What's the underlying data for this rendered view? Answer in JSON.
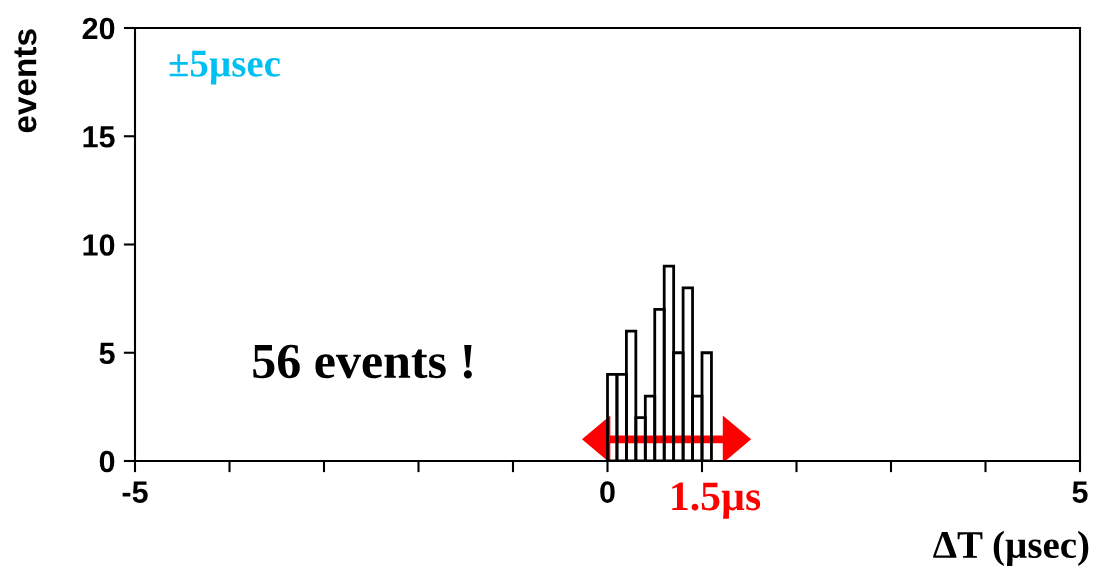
{
  "chart_data": {
    "type": "histogram",
    "xlabel": "ΔT (µsec)",
    "ylabel": "events",
    "bins": [
      0,
      0.1,
      0.2,
      0.3,
      0.4,
      0.5,
      0.6,
      0.7,
      0.8,
      0.9,
      1.0,
      1.1
    ],
    "values": [
      4,
      4,
      6,
      2,
      3,
      7,
      9,
      5,
      8,
      3,
      5
    ],
    "color": "#000000",
    "xlim": [
      -5,
      5
    ],
    "ylim": [
      0,
      20
    ],
    "xticks": [
      -5,
      {
        "value": -4,
        "label": null
      },
      {
        "value": -3,
        "label": null
      },
      {
        "value": -2,
        "label": null
      },
      {
        "value": -1,
        "label": null
      },
      0,
      {
        "value": 1,
        "label": null
      },
      {
        "value": 2,
        "label": null
      },
      {
        "value": 3,
        "label": null
      },
      {
        "value": 4,
        "label": null
      },
      5
    ],
    "yticks": [
      0,
      5,
      10,
      15,
      20
    ],
    "grid": false,
    "legend": false,
    "annotations": [
      "±5µsec",
      "56 events !",
      "1.5µs"
    ]
  }
}
